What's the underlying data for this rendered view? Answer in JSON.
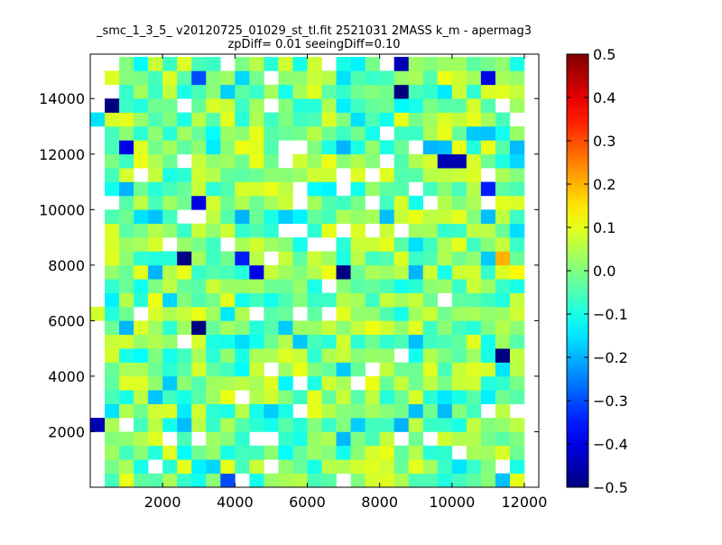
{
  "chart_data": {
    "type": "heatmap",
    "title_line1": "_smc_1_3_5_ v20120725_01029_st_tl.fit 2521031 2MASS k_m - apermag3",
    "title_line2": "zpDiff= 0.01 seeingDiff=0.10",
    "xlim": [
      0,
      12400
    ],
    "ylim": [
      0,
      15600
    ],
    "xticks": [
      "2000",
      "4000",
      "6000",
      "8000",
      "10000",
      "12000"
    ],
    "xtick_values": [
      2000,
      4000,
      6000,
      8000,
      10000,
      12000
    ],
    "yticks": [
      "2000",
      "4000",
      "6000",
      "8000",
      "10000",
      "12000",
      "14000"
    ],
    "ytick_values": [
      2000,
      4000,
      6000,
      8000,
      10000,
      12000,
      14000
    ],
    "colorbar": {
      "ticks": [
        "0.5",
        "0.4",
        "0.3",
        "0.2",
        "0.1",
        "0.0",
        "−0.1",
        "−0.2",
        "−0.3",
        "−0.4",
        "−0.5"
      ],
      "tick_values": [
        0.5,
        0.4,
        0.3,
        0.2,
        0.1,
        0.0,
        -0.1,
        -0.2,
        -0.3,
        -0.4,
        -0.5
      ],
      "vmin": -0.5,
      "vmax": 0.5,
      "colormap": "jet"
    },
    "grid": {
      "cols": 31,
      "rows": 31,
      "x0": 0,
      "y0": 0,
      "cell_w": 400,
      "cell_h": 500
    },
    "notable_cells": [
      {
        "x": 200,
        "y": 2250,
        "value": -0.45
      },
      {
        "x": 200,
        "y": 6250,
        "value": 0.08
      },
      {
        "x": 200,
        "y": 13250,
        "value": -0.15
      },
      {
        "x": 600,
        "y": 13750,
        "value": -0.5
      },
      {
        "x": 1000,
        "y": 12250,
        "value": -0.4
      },
      {
        "x": 2600,
        "y": 8250,
        "value": -0.5
      },
      {
        "x": 3000,
        "y": 5750,
        "value": -0.5
      },
      {
        "x": 3000,
        "y": 10250,
        "value": -0.4
      },
      {
        "x": 3000,
        "y": 14750,
        "value": -0.3
      },
      {
        "x": 3800,
        "y": 250,
        "value": -0.3
      },
      {
        "x": 4200,
        "y": 8250,
        "value": -0.35
      },
      {
        "x": 4600,
        "y": 7750,
        "value": -0.4
      },
      {
        "x": 6800,
        "y": 7750,
        "value": -0.5
      },
      {
        "x": 8600,
        "y": 15250,
        "value": -0.45
      },
      {
        "x": 8600,
        "y": 14250,
        "value": -0.5
      },
      {
        "x": 9800,
        "y": 11750,
        "value": -0.45
      },
      {
        "x": 10200,
        "y": 11750,
        "value": -0.45
      },
      {
        "x": 11400,
        "y": 4750,
        "value": -0.5
      },
      {
        "x": 11400,
        "y": 8250,
        "value": 0.2
      },
      {
        "x": 11800,
        "y": 7750,
        "value": 0.13
      },
      {
        "x": 11000,
        "y": 14750,
        "value": -0.4
      },
      {
        "x": 11000,
        "y": 10750,
        "value": -0.35
      }
    ]
  }
}
